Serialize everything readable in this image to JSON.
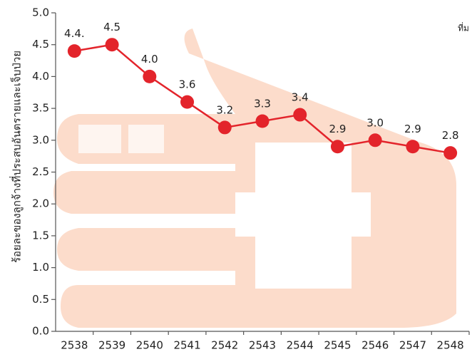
{
  "chart_data": {
    "type": "line",
    "y_label": "ร้อยละของลูกจ้างที่ประสบอันตรายและเจ็บป่วย",
    "annotation": "ที่ม",
    "categories": [
      "2538",
      "2539",
      "2540",
      "2541",
      "2542",
      "2543",
      "2544",
      "2545",
      "2546",
      "2547",
      "2548"
    ],
    "series": [
      {
        "color": "#e3242b",
        "values": [
          4.4,
          4.5,
          4.0,
          3.6,
          3.2,
          3.3,
          3.4,
          2.9,
          3.0,
          2.9,
          2.8
        ],
        "value_labels": [
          "4.4.",
          "4.5",
          "4.0",
          "3.6",
          "3.2",
          "3.3",
          "3.4",
          "2.9",
          "3.0",
          "2.9",
          "2.8"
        ]
      }
    ],
    "ylim": [
      0,
      5
    ],
    "yticks": [
      {
        "value": 0,
        "label": "0.0"
      },
      0.5,
      {
        "value": 1,
        "label": "1.0"
      },
      1.5,
      {
        "value": 2,
        "label": "2.0"
      },
      2.5,
      {
        "value": 3,
        "label": "3.0"
      },
      3.5,
      {
        "value": 4,
        "label": "4.0"
      },
      4.5,
      {
        "value": 5,
        "label": "5.0"
      }
    ]
  }
}
